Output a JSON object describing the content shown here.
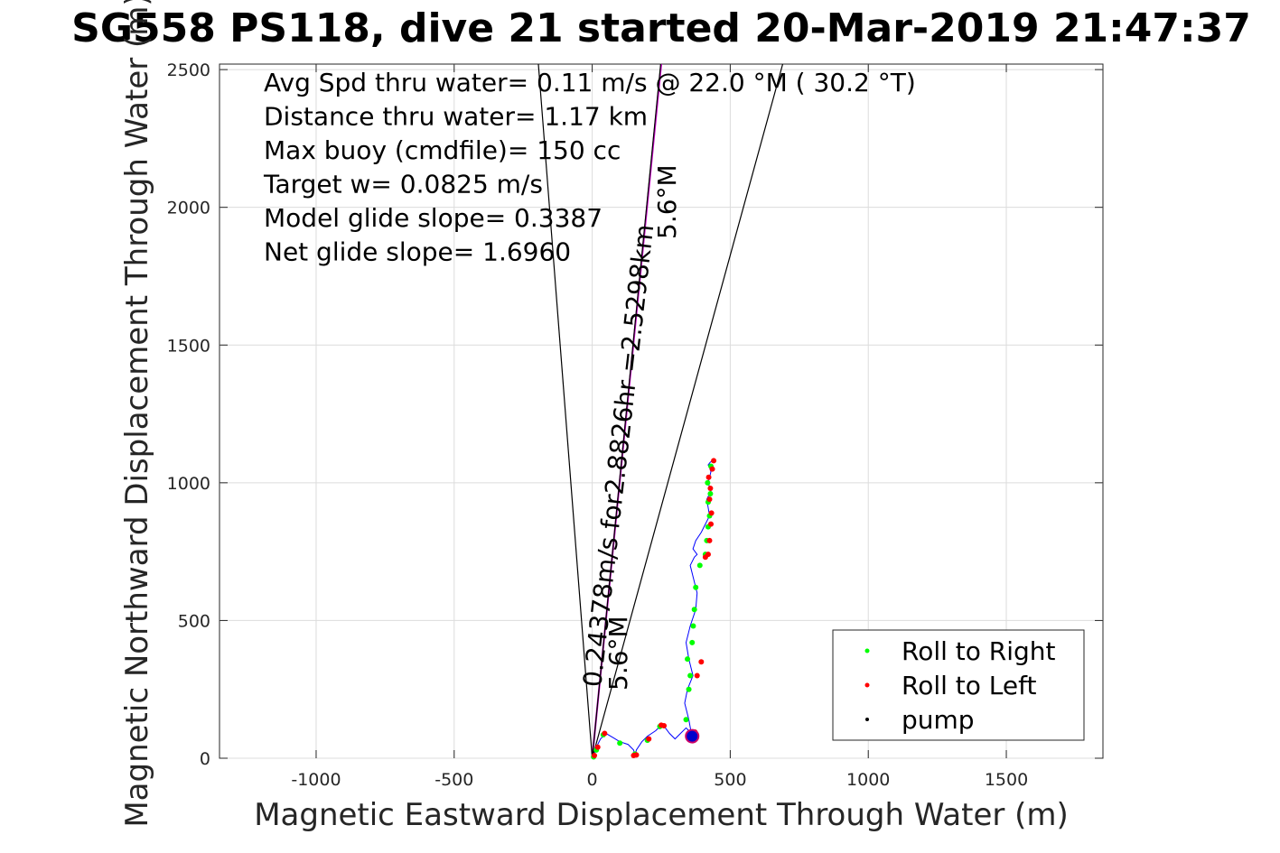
{
  "chart_data": {
    "type": "scatter",
    "title": "SG558 PS118, dive 21 started 20-Mar-2019 21:47:37",
    "xlabel": "Magnetic Eastward Displacement Through Water (m)",
    "ylabel": "Magnetic Northward Displacement Through Water (m)",
    "xlim": [
      -1350,
      1850
    ],
    "ylim": [
      0,
      2520
    ],
    "xticks": [
      -1000,
      -500,
      0,
      500,
      1000,
      1500
    ],
    "xtick_labels": [
      "-1000",
      "-500",
      "0",
      "500",
      "1000",
      "1500"
    ],
    "yticks": [
      0,
      500,
      1000,
      1500,
      2000,
      2500
    ],
    "ytick_labels": [
      "0",
      "500",
      "1000",
      "1500",
      "2000",
      "2500"
    ],
    "grid": true,
    "legend_position": "bottom-right",
    "annotations": [
      "Avg Spd thru water=  0.11 m/s @  22.0 °M ( 30.2 °T)",
      "Distance thru water=  1.17 km",
      "Max buoy (cmdfile)= 150 cc",
      "Target w= 0.0825 m/s",
      "Model glide slope= 0.3387",
      "Net glide slope= 1.6960"
    ],
    "heading_label": "0.24378m/s for2.8826hr =2.5298km",
    "spread_labels": [
      "5.6°M",
      "5.6°M"
    ],
    "lines": [
      {
        "name": "heading",
        "color": "#cc00cc",
        "x": [
          0,
          250
        ],
        "y": [
          0,
          2520
        ]
      },
      {
        "name": "cone-left",
        "color": "#000000",
        "x": [
          0,
          -195
        ],
        "y": [
          0,
          2520
        ]
      },
      {
        "name": "cone-right",
        "color": "#000000",
        "x": [
          0,
          690
        ],
        "y": [
          0,
          2520
        ]
      },
      {
        "name": "heading-inner",
        "color": "#000000",
        "x": [
          0,
          248
        ],
        "y": [
          0,
          2520
        ]
      }
    ],
    "track": {
      "name": "track",
      "color": "#0000ff",
      "x": [
        0,
        10,
        15,
        30,
        50,
        75,
        100,
        130,
        150,
        155,
        160,
        180,
        200,
        230,
        250,
        265,
        280,
        300,
        320,
        340,
        350,
        360,
        350,
        335,
        345,
        365,
        350,
        340,
        355,
        375,
        380,
        365,
        355,
        370,
        380,
        365,
        375,
        395,
        410,
        425,
        420,
        415,
        430,
        420,
        425,
        430,
        425,
        420,
        428,
        440
      ],
      "y": [
        0,
        20,
        40,
        70,
        90,
        75,
        60,
        50,
        30,
        10,
        30,
        60,
        80,
        100,
        120,
        110,
        90,
        70,
        90,
        110,
        100,
        85,
        140,
        200,
        250,
        300,
        360,
        420,
        480,
        540,
        600,
        660,
        700,
        730,
        740,
        760,
        790,
        820,
        850,
        880,
        910,
        940,
        970,
        1000,
        1020,
        1040,
        1055,
        1065,
        1075,
        1080
      ]
    },
    "series": [
      {
        "name": "Roll to Right",
        "color": "#00ff00",
        "x": [
          5,
          15,
          40,
          100,
          155,
          200,
          245,
          340,
          350,
          355,
          345,
          362,
          366,
          370,
          375,
          390,
          410,
          415,
          420,
          425,
          420,
          428,
          418,
          430
        ],
        "y": [
          5,
          30,
          85,
          55,
          15,
          65,
          115,
          140,
          250,
          300,
          360,
          420,
          480,
          540,
          620,
          700,
          740,
          790,
          840,
          880,
          930,
          960,
          1000,
          1060
        ]
      },
      {
        "name": "Roll to Left",
        "color": "#ff0000",
        "x": [
          8,
          20,
          45,
          150,
          160,
          205,
          250,
          260,
          360,
          365,
          368,
          372,
          380,
          395,
          410,
          420,
          425,
          430,
          432,
          425,
          428,
          422,
          435,
          440
        ],
        "y": [
          10,
          40,
          90,
          10,
          12,
          70,
          120,
          118,
          70,
          75,
          85,
          95,
          300,
          350,
          730,
          740,
          790,
          850,
          890,
          940,
          980,
          1020,
          1050,
          1080
        ]
      },
      {
        "name": "pump",
        "color": "#000000",
        "x": [],
        "y": []
      }
    ],
    "markers": [
      {
        "name": "pump-marker",
        "color": "#0000cc",
        "x": 362,
        "y": 80
      }
    ]
  }
}
